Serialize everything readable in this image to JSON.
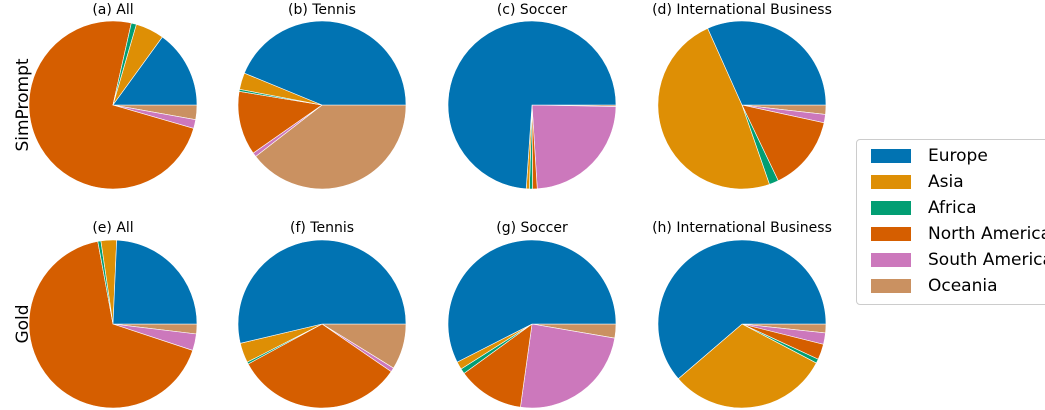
{
  "row_labels": [
    "SimPrompt",
    "Gold"
  ],
  "legend": [
    {
      "name": "Europe",
      "color": "#0173b2"
    },
    {
      "name": "Asia",
      "color": "#de8f05"
    },
    {
      "name": "Africa",
      "color": "#029e73"
    },
    {
      "name": "North America",
      "color": "#d55e00"
    },
    {
      "name": "South America",
      "color": "#cc78bc"
    },
    {
      "name": "Oceania",
      "color": "#ca9161"
    }
  ],
  "chart_data": [
    {
      "type": "pie",
      "title": "(a) All",
      "categories": [
        "Europe",
        "Asia",
        "Africa",
        "North America",
        "South America",
        "Oceania"
      ],
      "values": [
        15.0,
        5.5,
        1.0,
        74.0,
        1.7,
        2.8
      ]
    },
    {
      "type": "pie",
      "title": "(b) Tennis",
      "categories": [
        "Europe",
        "Asia",
        "Africa",
        "North America",
        "South America",
        "Oceania"
      ],
      "values": [
        43.8,
        3.2,
        0.4,
        12.3,
        0.8,
        39.5
      ]
    },
    {
      "type": "pie",
      "title": "(c) Soccer",
      "categories": [
        "Europe",
        "Asia",
        "Africa",
        "North America",
        "South America",
        "Oceania"
      ],
      "values": [
        73.9,
        0.6,
        0.6,
        0.9,
        23.7,
        0.3
      ]
    },
    {
      "type": "pie",
      "title": "(d) International Business",
      "categories": [
        "Europe",
        "Asia",
        "Africa",
        "North America",
        "South America",
        "Oceania"
      ],
      "values": [
        31.7,
        48.6,
        1.8,
        14.5,
        1.6,
        1.8
      ]
    },
    {
      "type": "pie",
      "title": "(e) All",
      "categories": [
        "Europe",
        "Asia",
        "Africa",
        "North America",
        "South America",
        "Oceania"
      ],
      "values": [
        24.3,
        3.0,
        0.6,
        67.0,
        3.2,
        1.9
      ]
    },
    {
      "type": "pie",
      "title": "(f) Tennis",
      "categories": [
        "Europe",
        "Asia",
        "Africa",
        "North America",
        "South America",
        "Oceania"
      ],
      "values": [
        53.7,
        3.8,
        0.4,
        32.5,
        0.8,
        8.8
      ]
    },
    {
      "type": "pie",
      "title": "(g) Soccer",
      "categories": [
        "Europe",
        "Asia",
        "Africa",
        "North America",
        "South America",
        "Oceania"
      ],
      "values": [
        57.5,
        1.5,
        1.0,
        12.8,
        24.5,
        2.7
      ]
    },
    {
      "type": "pie",
      "title": "(h) International Business",
      "categories": [
        "Europe",
        "Asia",
        "Africa",
        "North America",
        "South America",
        "Oceania"
      ],
      "values": [
        61.3,
        31.0,
        0.8,
        3.0,
        2.2,
        1.7
      ]
    }
  ]
}
